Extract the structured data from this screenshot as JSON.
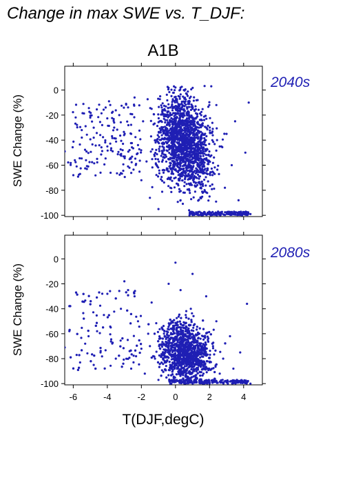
{
  "figure_title": "Change in max SWE vs. T_DJF:",
  "scenario": "A1B",
  "colors": {
    "points": "#1f1fb4",
    "period_label": "#1f1fb4",
    "axes": "#000000"
  },
  "chart_data": [
    {
      "type": "scatter",
      "panel_label": "2040s",
      "xlabel": "",
      "ylabel": "SWE Change (%)",
      "xlim": [
        -6.5,
        5.1
      ],
      "ylim": [
        -101,
        19
      ],
      "yticks": [
        "0",
        "-20",
        "-40",
        "-60",
        "-80",
        "-100"
      ],
      "ytick_values": [
        0,
        -20,
        -40,
        -60,
        -80,
        -100
      ],
      "xtick_values": [
        -6,
        -4,
        -2,
        0,
        2,
        4
      ],
      "xtick_labels_shown": false,
      "point_count_approx": 3000,
      "distribution": "dense cloud concentrated between about -1.5 and 2.5 degC spanning roughly 0 to -100%; sparse scattered points from -6.5 to -2 degC between about -5 and -70%; a line of saturated points near -98 to -100% between 1 and 4 degC",
      "points": [
        [
          -6.5,
          -49
        ],
        [
          -5.8,
          -61
        ],
        [
          -5.6,
          -67
        ],
        [
          -5.2,
          -63
        ],
        [
          -5.5,
          -32
        ],
        [
          -5.0,
          -22
        ],
        [
          -4.8,
          -38
        ],
        [
          -4.6,
          -55
        ],
        [
          -4.4,
          -66
        ],
        [
          -4.3,
          -28
        ],
        [
          -4.1,
          -14
        ],
        [
          -3.9,
          -9
        ],
        [
          -4.0,
          -45
        ],
        [
          -3.6,
          -30
        ],
        [
          -3.3,
          -20
        ],
        [
          -3.1,
          -48
        ],
        [
          -2.9,
          -11
        ],
        [
          -2.7,
          -62
        ],
        [
          -2.6,
          -35
        ],
        [
          -2.4,
          -6
        ],
        [
          -2.2,
          -44
        ],
        [
          -2.0,
          -72
        ],
        [
          -1.9,
          -25
        ],
        [
          -1.7,
          -57
        ],
        [
          -1.5,
          -86
        ],
        [
          -1.4,
          -15
        ],
        [
          -1.2,
          -40
        ],
        [
          -1.0,
          -95
        ],
        [
          -0.9,
          -5
        ],
        [
          -0.7,
          -66
        ],
        [
          -0.5,
          -28
        ],
        [
          -0.3,
          -78
        ],
        [
          -0.2,
          -48
        ],
        [
          0.0,
          2
        ],
        [
          0.2,
          -35
        ],
        [
          0.3,
          -88
        ],
        [
          0.5,
          -60
        ],
        [
          0.7,
          -18
        ],
        [
          0.8,
          -96
        ],
        [
          1.0,
          -42
        ],
        [
          1.2,
          -74
        ],
        [
          1.3,
          -8
        ],
        [
          1.5,
          -98
        ],
        [
          1.7,
          -55
        ],
        [
          1.8,
          -30
        ],
        [
          2.0,
          -85
        ],
        [
          2.1,
          3
        ],
        [
          2.3,
          -67
        ],
        [
          2.5,
          -97
        ],
        [
          2.7,
          -45
        ],
        [
          2.9,
          -78
        ],
        [
          3.1,
          -99
        ],
        [
          3.3,
          -60
        ],
        [
          3.5,
          -25
        ],
        [
          3.7,
          -88
        ],
        [
          3.9,
          -99
        ],
        [
          4.1,
          -50
        ],
        [
          4.3,
          -10
        ],
        [
          4.4,
          -99
        ],
        [
          -1.1,
          -60
        ],
        [
          0.6,
          -52
        ],
        [
          1.6,
          -82
        ],
        [
          -0.4,
          -70
        ],
        [
          0.9,
          -25
        ],
        [
          2.4,
          -12
        ],
        [
          3.0,
          -35
        ]
      ]
    },
    {
      "type": "scatter",
      "panel_label": "2080s",
      "xlabel": "T(DJF,degC)",
      "ylabel": "SWE Change (%)",
      "xlim": [
        -6.5,
        5.1
      ],
      "ylim": [
        -101,
        19
      ],
      "yticks": [
        "0",
        "-20",
        "-40",
        "-60",
        "-80",
        "-100"
      ],
      "ytick_values": [
        0,
        -20,
        -40,
        -60,
        -80,
        -100
      ],
      "xticks": [
        "-6",
        "-4",
        "-2",
        "0",
        "2",
        "4"
      ],
      "xtick_values": [
        -6,
        -4,
        -2,
        0,
        2,
        4
      ],
      "point_count_approx": 3000,
      "distribution": "dense cloud between about -2 and 3 degC concentrated near -60 to -100%; sparse points from -6.5 to -2 degC between about -25 and -90%; many points saturated near -100% from 0 to 4 degC",
      "points": [
        [
          -6.5,
          -71
        ],
        [
          -5.8,
          -77
        ],
        [
          -5.6,
          -83
        ],
        [
          -5.3,
          -68
        ],
        [
          -5.1,
          -62
        ],
        [
          -4.8,
          -85
        ],
        [
          -4.6,
          -58
        ],
        [
          -4.4,
          -75
        ],
        [
          -4.2,
          -45
        ],
        [
          -4.0,
          -28
        ],
        [
          -3.8,
          -55
        ],
        [
          -3.5,
          -80
        ],
        [
          -3.2,
          -40
        ],
        [
          -3.0,
          -18
        ],
        [
          -2.8,
          -65
        ],
        [
          -2.6,
          -88
        ],
        [
          -2.4,
          -30
        ],
        [
          -2.2,
          -50
        ],
        [
          -2.0,
          -72
        ],
        [
          -1.8,
          -92
        ],
        [
          -1.6,
          -60
        ],
        [
          -1.4,
          -35
        ],
        [
          -1.2,
          -80
        ],
        [
          -1.0,
          -97
        ],
        [
          -0.8,
          -55
        ],
        [
          -0.6,
          -75
        ],
        [
          -0.4,
          -20
        ],
        [
          -0.2,
          -88
        ],
        [
          0.0,
          -3
        ],
        [
          0.2,
          -65
        ],
        [
          0.4,
          -99
        ],
        [
          0.6,
          -45
        ],
        [
          0.8,
          -82
        ],
        [
          1.0,
          -12
        ],
        [
          1.2,
          -95
        ],
        [
          1.4,
          -60
        ],
        [
          1.6,
          -85
        ],
        [
          1.8,
          -30
        ],
        [
          2.0,
          -99
        ],
        [
          2.2,
          -70
        ],
        [
          2.4,
          -50
        ],
        [
          2.6,
          -92
        ],
        [
          2.8,
          -80
        ],
        [
          3.0,
          -99
        ],
        [
          3.2,
          -62
        ],
        [
          3.4,
          -88
        ],
        [
          3.6,
          -99
        ],
        [
          3.8,
          -75
        ],
        [
          4.0,
          -99
        ],
        [
          4.2,
          -36
        ],
        [
          4.4,
          -100
        ],
        [
          0.5,
          -76
        ],
        [
          1.5,
          -72
        ],
        [
          -0.5,
          -82
        ],
        [
          1.1,
          -90
        ],
        [
          2.3,
          -96
        ],
        [
          0.9,
          -40
        ],
        [
          -1.5,
          -70
        ],
        [
          1.9,
          -65
        ],
        [
          0.3,
          -25
        ]
      ]
    }
  ]
}
